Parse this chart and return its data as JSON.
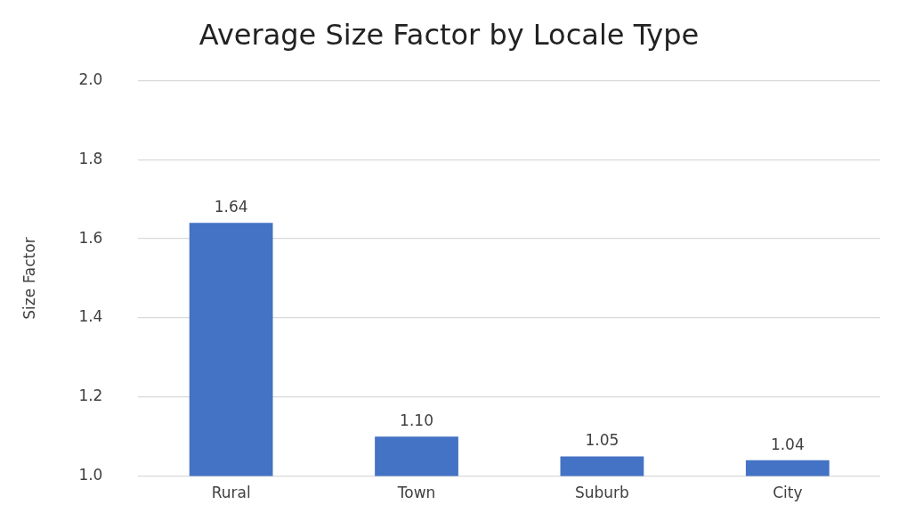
{
  "chart_data": {
    "type": "bar",
    "title": "Average Size Factor by Locale Type",
    "ylabel": "Size Factor",
    "categories": [
      "Rural",
      "Town",
      "Suburb",
      "City"
    ],
    "values": [
      1.64,
      1.1,
      1.05,
      1.04
    ],
    "value_labels": [
      "1.64",
      "1.10",
      "1.05",
      "1.04"
    ],
    "color": "#4472c4",
    "ylim": [
      1.0,
      2.0
    ],
    "yticks": [
      {
        "value": 1.0,
        "label": "1.0"
      },
      {
        "value": 1.2,
        "label": "1.2"
      },
      {
        "value": 1.4,
        "label": "1.4"
      },
      {
        "value": 1.6,
        "label": "1.6"
      },
      {
        "value": 1.8,
        "label": "1.8"
      },
      {
        "value": 2.0,
        "label": "2.0"
      }
    ],
    "grid": "y",
    "legend": false
  }
}
